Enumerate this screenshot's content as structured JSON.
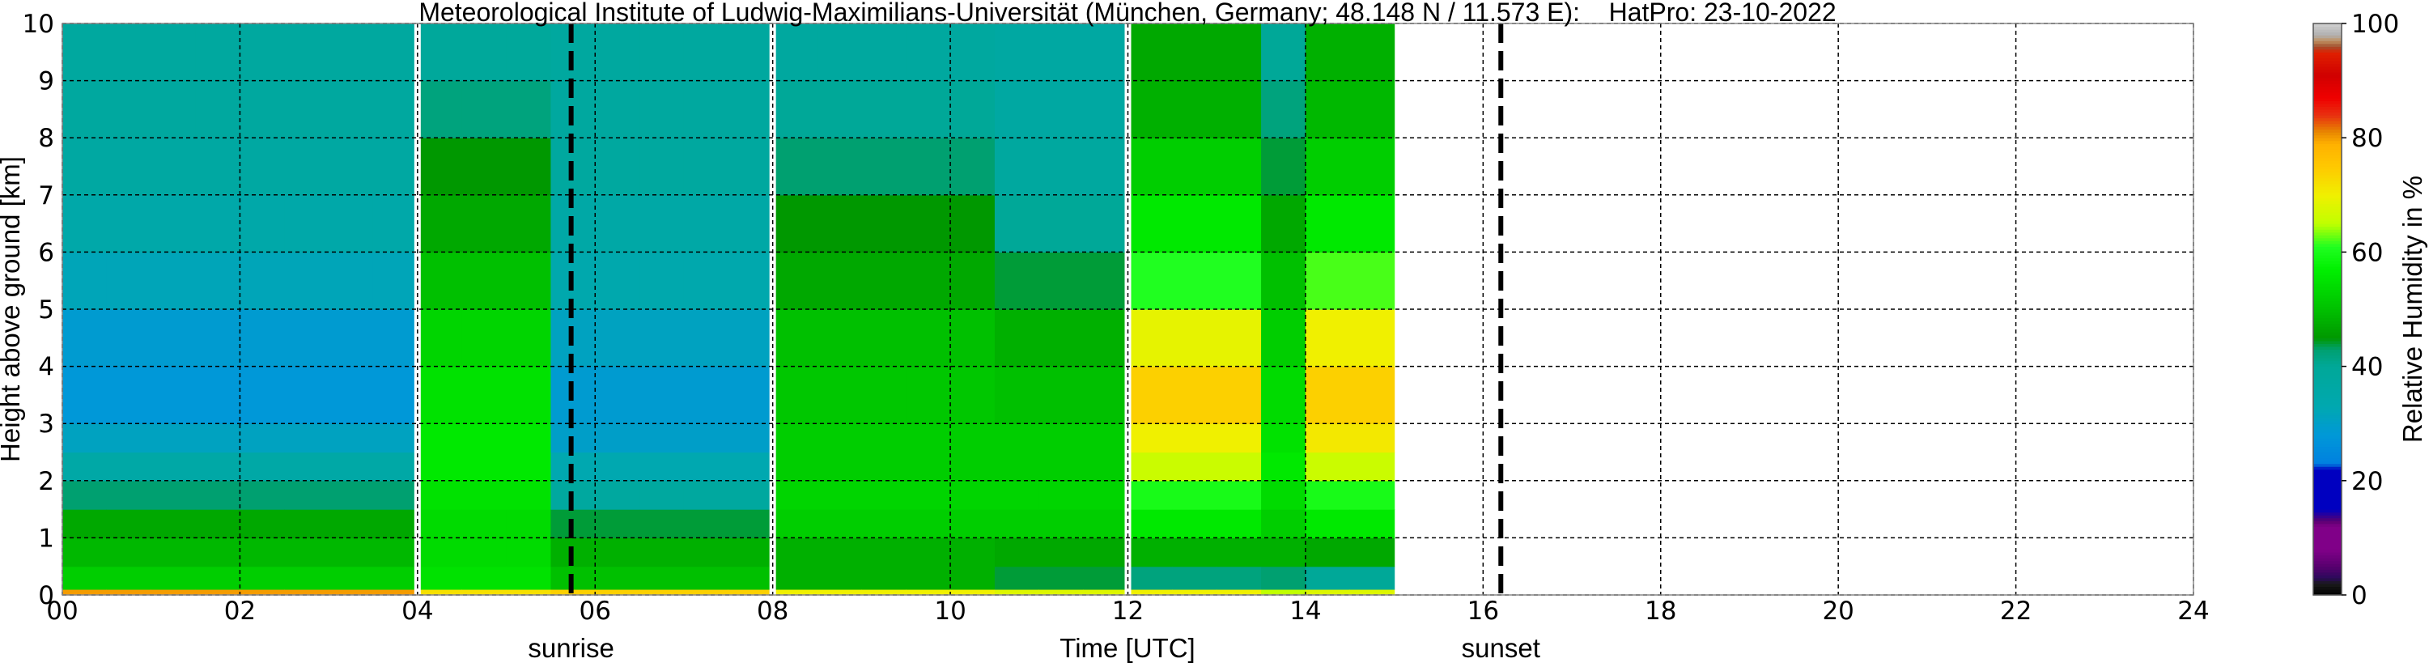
{
  "chart_data": {
    "type": "heatmap",
    "title": "Meteorological Institute of Ludwig-Maximilians-Universität (München, Germany; 48.148 N / 11.573 E):    HatPro: 23-10-2022",
    "xlabel": "Time [UTC]",
    "ylabel": "Height above ground [km]",
    "xlim": [
      0,
      24
    ],
    "ylim": [
      0,
      10
    ],
    "xticks": [
      "00",
      "02",
      "04",
      "06",
      "08",
      "10",
      "12",
      "14",
      "16",
      "18",
      "20",
      "22",
      "24"
    ],
    "yticks": [
      "0",
      "1",
      "2",
      "3",
      "4",
      "5",
      "6",
      "7",
      "8",
      "9",
      "10"
    ],
    "grid": true,
    "colorbar": {
      "label": "Relative Humidity in %",
      "range": [
        0,
        100
      ],
      "ticks": [
        "0",
        "20",
        "40",
        "60",
        "80",
        "100"
      ],
      "stops": [
        [
          0,
          "#000000"
        ],
        [
          2,
          "#1a1a1a"
        ],
        [
          3,
          "#2a0a5a"
        ],
        [
          5,
          "#58006e"
        ],
        [
          8,
          "#800088"
        ],
        [
          12,
          "#800088"
        ],
        [
          13,
          "#5a0070"
        ],
        [
          15,
          "#0000c0"
        ],
        [
          22,
          "#0000c0"
        ],
        [
          23,
          "#0080e0"
        ],
        [
          28,
          "#0098d8"
        ],
        [
          33,
          "#00a8b0"
        ],
        [
          40,
          "#00a898"
        ],
        [
          43,
          "#00a070"
        ],
        [
          45,
          "#009800"
        ],
        [
          50,
          "#00c000"
        ],
        [
          57,
          "#00f000"
        ],
        [
          61,
          "#20ff20"
        ],
        [
          65,
          "#c0ff00"
        ],
        [
          70,
          "#f0f000"
        ],
        [
          75,
          "#ffc800"
        ],
        [
          79,
          "#ffb000"
        ],
        [
          81,
          "#e88800"
        ],
        [
          84,
          "#e83010"
        ],
        [
          87,
          "#f00000"
        ],
        [
          91,
          "#d00000"
        ],
        [
          95,
          "#e02000"
        ],
        [
          96,
          "#a05030"
        ],
        [
          97,
          "#c09060"
        ],
        [
          98,
          "#b0b0b0"
        ],
        [
          100,
          "#d0d0d0"
        ]
      ]
    },
    "time_step_h": 0.5,
    "height_bins_km": [
      [
        0,
        0.1
      ],
      [
        0.1,
        0.5
      ],
      [
        0.5,
        1
      ],
      [
        1,
        1.5
      ],
      [
        1.5,
        2
      ],
      [
        2,
        2.5
      ],
      [
        2.5,
        3
      ],
      [
        3,
        4
      ],
      [
        4,
        5
      ],
      [
        5,
        6
      ],
      [
        6,
        7
      ],
      [
        7,
        8
      ],
      [
        8,
        9
      ],
      [
        9,
        10
      ]
    ],
    "profiles": {
      "A": [
        80,
        52,
        49,
        47,
        43,
        36,
        31,
        28,
        29,
        32,
        35,
        37,
        38,
        38
      ],
      "B": [
        72,
        55,
        54,
        54,
        55,
        56,
        56,
        55,
        53,
        50,
        47,
        45,
        42,
        39
      ],
      "C": [
        74,
        50,
        48,
        44,
        38,
        33,
        30,
        29,
        31,
        34,
        36,
        38,
        38,
        38
      ],
      "D": [
        70,
        48,
        48,
        52,
        53,
        52,
        52,
        51,
        50,
        47,
        45,
        43,
        40,
        38
      ],
      "E": [
        68,
        44,
        47,
        52,
        53,
        52,
        52,
        50,
        48,
        44,
        40,
        38,
        37,
        37
      ],
      "F": [
        70,
        42,
        48,
        56,
        60,
        66,
        70,
        74,
        69,
        61,
        56,
        52,
        48,
        47
      ],
      "G": [
        65,
        43,
        48,
        52,
        54,
        56,
        55,
        54,
        52,
        50,
        47,
        44,
        42,
        40
      ],
      "H": [
        68,
        40,
        47,
        56,
        60,
        66,
        71,
        74,
        70,
        62,
        56,
        52,
        49,
        48
      ]
    },
    "columns": [
      "A",
      "A",
      "A",
      "A",
      "A",
      "A",
      "A",
      "A",
      "B",
      "B",
      "B",
      "C",
      "C",
      "C",
      "C",
      "C",
      "D",
      "D",
      "D",
      "D",
      "D",
      "E",
      "E",
      "E",
      "F",
      "F",
      "F",
      "G",
      "H",
      "H"
    ],
    "data_gaps_utc": [
      4,
      8,
      12
    ],
    "events": [
      {
        "label": "sunrise",
        "time_utc": 5.73
      },
      {
        "label": "sunset",
        "time_utc": 16.2
      }
    ]
  }
}
